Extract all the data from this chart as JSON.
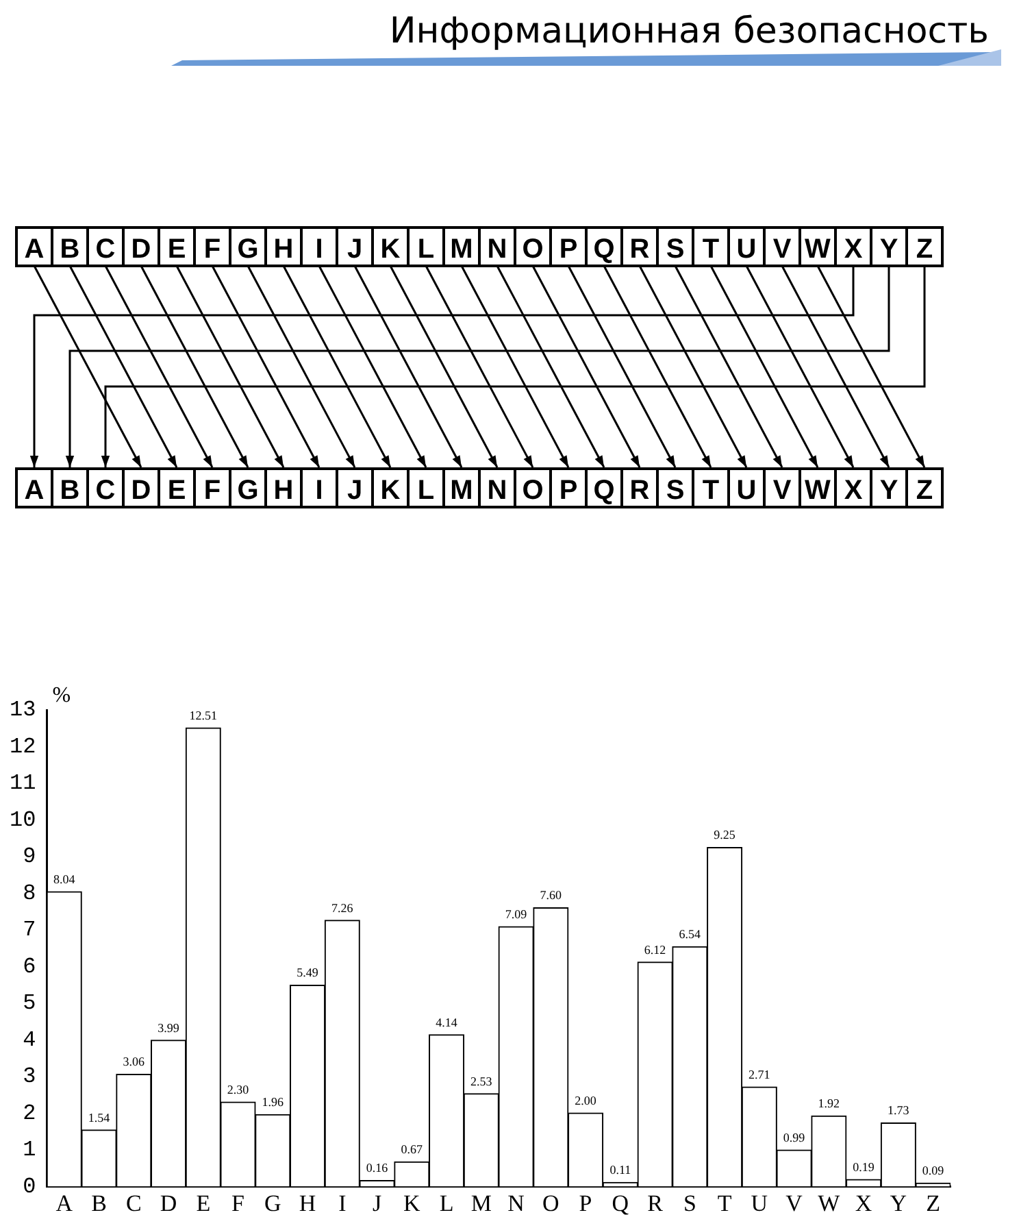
{
  "chart_data": {
    "type": "bar",
    "title": "Информационная безопасность",
    "ylabel": "%",
    "categories": [
      "A",
      "B",
      "C",
      "D",
      "E",
      "F",
      "G",
      "H",
      "I",
      "J",
      "K",
      "L",
      "M",
      "N",
      "O",
      "P",
      "Q",
      "R",
      "S",
      "T",
      "U",
      "V",
      "W",
      "X",
      "Y",
      "Z"
    ],
    "values": [
      8.04,
      1.54,
      3.06,
      3.99,
      12.51,
      2.3,
      1.96,
      5.49,
      7.26,
      0.16,
      0.67,
      4.14,
      2.53,
      7.09,
      7.6,
      2.0,
      0.11,
      6.12,
      6.54,
      9.25,
      2.71,
      0.99,
      1.92,
      0.19,
      1.73,
      0.09
    ],
    "value_labels": [
      "8.04",
      "1.54",
      "3.06",
      "3.99",
      "12.51",
      "2.30",
      "1.96",
      "5.49",
      "7.26",
      "0.16",
      "0.67",
      "4.14",
      "2.53",
      "7.09",
      "7.60",
      "2.00",
      "0.11",
      "6.12",
      "6.54",
      "9.25",
      "2.71",
      "0.99",
      "1.92",
      "0.19",
      "1.73",
      "0.09"
    ],
    "color": "#ffffff",
    "ylim": [
      0,
      13
    ],
    "yticks": [
      0,
      1,
      2,
      3,
      4,
      5,
      6,
      7,
      8,
      9,
      10,
      11,
      12,
      13
    ],
    "grid": false,
    "legend": false
  }
}
